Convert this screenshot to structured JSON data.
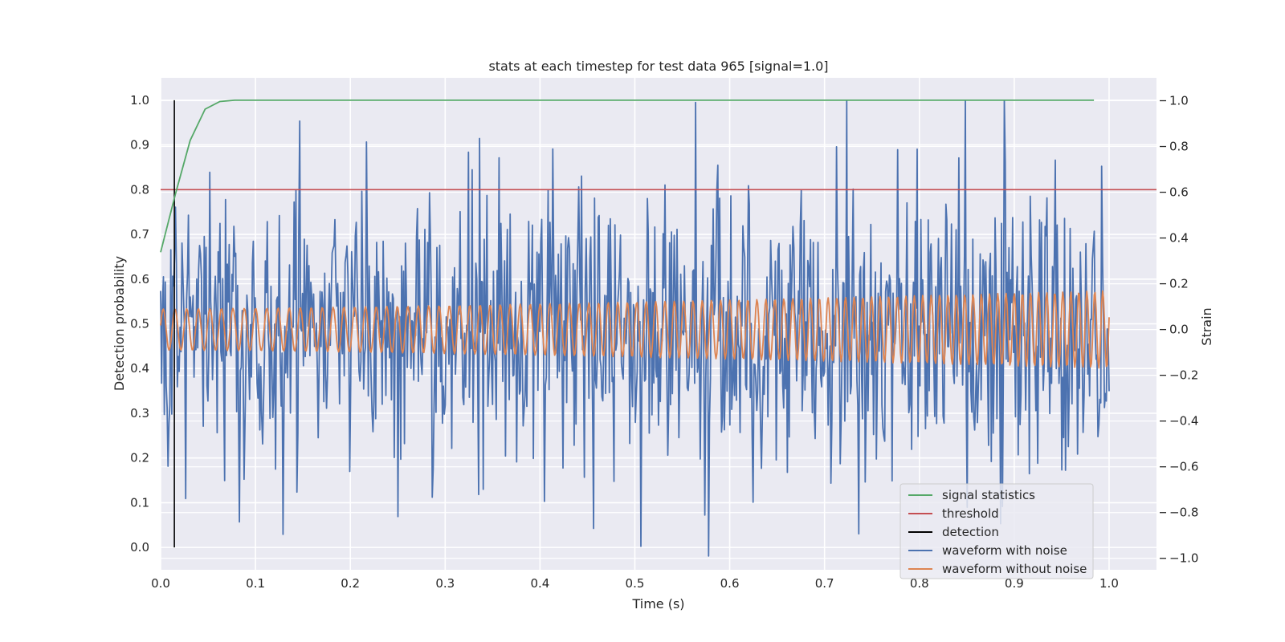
{
  "chart_data": {
    "type": "line",
    "title": "stats at each timestep for test data 965 [signal=1.0]",
    "xlabel": "Time (s)",
    "ylabel_left": "Detection probability",
    "ylabel_right": "Strain",
    "xlim": [
      0.0,
      1.05
    ],
    "ylim_left": [
      -0.05,
      1.05
    ],
    "ylim_right": [
      -1.05,
      1.1
    ],
    "x_ticks": [
      "0.0",
      "0.1",
      "0.2",
      "0.3",
      "0.4",
      "0.5",
      "0.6",
      "0.7",
      "0.8",
      "0.9",
      "1.0"
    ],
    "y_left_ticks": [
      "0.0",
      "0.1",
      "0.2",
      "0.3",
      "0.4",
      "0.5",
      "0.6",
      "0.7",
      "0.8",
      "0.9",
      "1.0"
    ],
    "y_right_ticks": [
      "-1.0",
      "-0.8",
      "-0.6",
      "-0.4",
      "-0.2",
      "0.0",
      "0.2",
      "0.4",
      "0.6",
      "0.8",
      "1.0"
    ],
    "grid": true,
    "legend_position": "lower-right",
    "series": [
      {
        "name": "signal statistics",
        "axis": "left",
        "color": "#55a868",
        "x": [
          0.0,
          0.0156,
          0.0312,
          0.0469,
          0.0625,
          0.0781,
          0.1,
          0.2,
          0.3,
          0.4,
          0.5,
          0.6,
          0.7,
          0.8,
          0.9,
          0.984
        ],
        "y": [
          0.66,
          0.79,
          0.91,
          0.98,
          0.997,
          1.0,
          1.0,
          1.0,
          1.0,
          1.0,
          1.0,
          1.0,
          1.0,
          1.0,
          1.0,
          1.0
        ]
      },
      {
        "name": "threshold",
        "axis": "left",
        "color": "#c44e52",
        "x": [
          0.0,
          1.05
        ],
        "y": [
          0.8,
          0.8
        ]
      },
      {
        "name": "detection",
        "axis": "left",
        "color": "#000000",
        "x": [
          0.0145,
          0.0145
        ],
        "y": [
          0.0,
          1.0
        ]
      },
      {
        "name": "waveform with noise",
        "axis": "right",
        "color": "#4c72b0",
        "x_range": [
          0.0,
          1.0
        ],
        "samples": 1024,
        "noise_std": 0.3
      },
      {
        "name": "waveform without noise",
        "axis": "right",
        "color": "#dd8452",
        "x_range": [
          0.0,
          1.0
        ],
        "freq_hz": [
          80,
          120
        ],
        "amplitude": [
          0.09,
          0.17
        ]
      }
    ]
  }
}
